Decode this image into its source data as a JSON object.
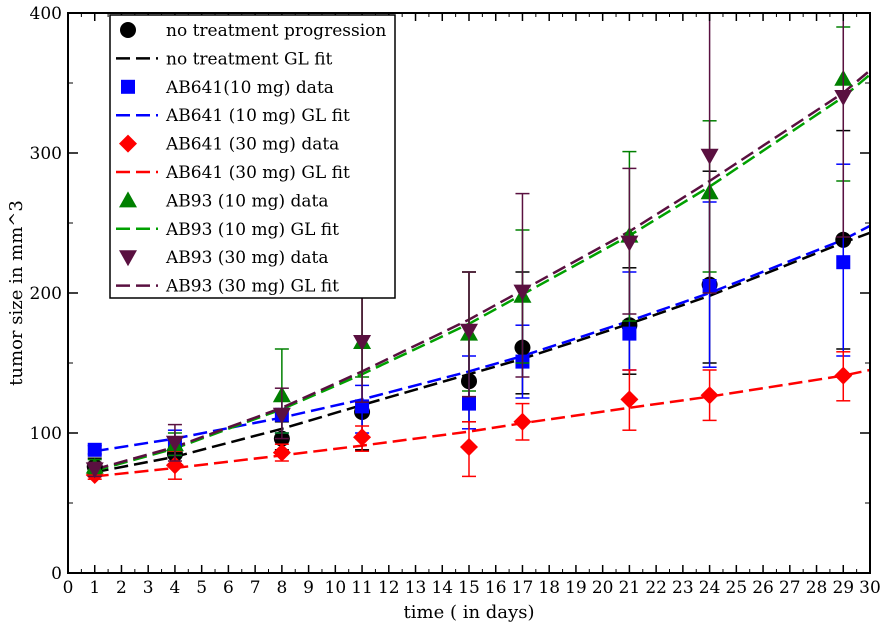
{
  "chart_data": {
    "type": "scatter",
    "title": "",
    "xlabel": "time ( in days)",
    "ylabel": "tumor size in mm^3",
    "xlim": [
      0,
      30
    ],
    "ylim": [
      0,
      400
    ],
    "xticks": [
      0,
      1,
      2,
      3,
      4,
      5,
      6,
      7,
      8,
      9,
      10,
      11,
      12,
      13,
      14,
      15,
      16,
      17,
      18,
      19,
      20,
      21,
      22,
      23,
      24,
      25,
      26,
      27,
      28,
      29,
      30
    ],
    "yticks": [
      0,
      100,
      200,
      300,
      400
    ],
    "grid": false,
    "legend_position": "top-left",
    "series": [
      {
        "name": "no treatment progression",
        "kind": "data",
        "marker": "circle",
        "color": "#000000",
        "x": [
          1,
          4,
          8,
          11,
          15,
          17,
          21,
          24,
          29
        ],
        "y": [
          76,
          85,
          96,
          115,
          137,
          161,
          177,
          206,
          238
        ],
        "err_low": [
          70,
          78,
          88,
          88,
          108,
          128,
          142,
          150,
          160
        ],
        "err_high": [
          82,
          94,
          108,
          213,
          215,
          215,
          218,
          287,
          316
        ]
      },
      {
        "name": "no treatment GL fit",
        "kind": "fit",
        "color": "#000000",
        "x": [
          1,
          4,
          8,
          11,
          15,
          17,
          21,
          24,
          29,
          30
        ],
        "y": [
          72,
          83,
          103,
          120,
          142,
          153,
          178,
          198,
          236,
          243
        ]
      },
      {
        "name": "AB641(10 mg) data",
        "kind": "data",
        "marker": "square",
        "color": "#0000ff",
        "x": [
          1,
          4,
          8,
          11,
          15,
          17,
          21,
          24,
          29
        ],
        "y": [
          88,
          92,
          113,
          119,
          121,
          151,
          171,
          205,
          222
        ],
        "err_low": [
          85,
          84,
          100,
          100,
          103,
          125,
          145,
          147,
          155
        ],
        "err_high": [
          91,
          102,
          124,
          134,
          155,
          177,
          215,
          265,
          292
        ]
      },
      {
        "name": "AB641 (10 mg) GL fit",
        "kind": "fit",
        "color": "#0000ff",
        "x": [
          1,
          4,
          8,
          11,
          15,
          17,
          21,
          24,
          29,
          30
        ],
        "y": [
          87,
          96,
          111,
          124,
          144,
          155,
          180,
          200,
          238,
          248
        ]
      },
      {
        "name": "AB641 (30 mg) data",
        "kind": "data",
        "marker": "diamond",
        "color": "#ff0000",
        "x": [
          1,
          4,
          8,
          11,
          15,
          17,
          21,
          24,
          29
        ],
        "y": [
          70,
          77,
          86,
          97,
          90,
          108,
          124,
          127,
          141
        ],
        "err_low": [
          67,
          67,
          80,
          87,
          69,
          95,
          102,
          109,
          123
        ],
        "err_high": [
          73,
          87,
          92,
          105,
          108,
          121,
          145,
          145,
          158
        ]
      },
      {
        "name": "AB641 (30 mg) GL fit",
        "kind": "fit",
        "color": "#ff0000",
        "x": [
          1,
          4,
          8,
          11,
          15,
          17,
          21,
          24,
          29,
          30
        ],
        "y": [
          69,
          75,
          84,
          91,
          101,
          107,
          118,
          126,
          141,
          145
        ]
      },
      {
        "name": "AB93 (10 mg) data",
        "kind": "data",
        "marker": "triangle-up",
        "color": "#008000",
        "x": [
          1,
          4,
          8,
          11,
          15,
          17,
          21,
          24,
          29
        ],
        "y": [
          76,
          92,
          127,
          165,
          171,
          198,
          241,
          272,
          353
        ],
        "err_low": [
          71,
          84,
          100,
          140,
          130,
          150,
          180,
          215,
          280
        ],
        "err_high": [
          81,
          100,
          160,
          200,
          215,
          245,
          301,
          323,
          390
        ]
      },
      {
        "name": "AB93 (10 mg) GL fit",
        "kind": "fit",
        "color": "#00a000",
        "x": [
          1,
          4,
          8,
          11,
          15,
          17,
          21,
          24,
          29,
          30
        ],
        "y": [
          73,
          89,
          117,
          142,
          178,
          199,
          241,
          276,
          340,
          356
        ]
      },
      {
        "name": "AB93 (30 mg) data",
        "kind": "data",
        "marker": "triangle-down",
        "color": "#5a1040",
        "x": [
          1,
          4,
          8,
          11,
          15,
          17,
          21,
          24,
          29
        ],
        "y": [
          74,
          93,
          113,
          165,
          173,
          201,
          236,
          298,
          340
        ],
        "err_low": [
          69,
          80,
          96,
          122,
          126,
          140,
          185,
          200,
          240
        ],
        "err_high": [
          79,
          106,
          132,
          220,
          215,
          271,
          289,
          400,
          400
        ]
      },
      {
        "name": "AB93 (30 mg) GL fit",
        "kind": "fit",
        "color": "#5a1040",
        "x": [
          1,
          4,
          8,
          11,
          15,
          17,
          21,
          24,
          29,
          30
        ],
        "y": [
          74,
          90,
          118,
          144,
          181,
          202,
          244,
          280,
          343,
          359
        ]
      }
    ]
  }
}
